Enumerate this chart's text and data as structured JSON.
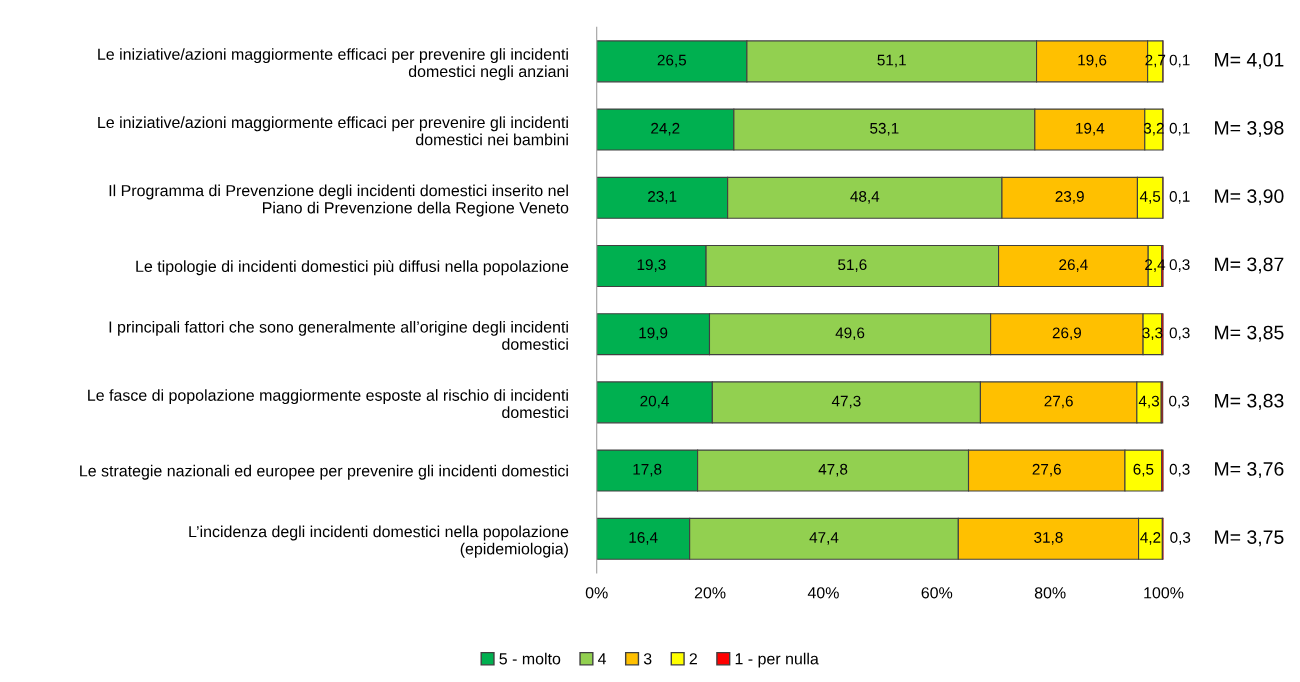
{
  "chart_data": {
    "type": "bar",
    "orientation": "horizontal",
    "stacked": true,
    "grid": false,
    "legend": "bottom",
    "categories": [
      "Le iniziative/azioni maggiormente efficaci per prevenire gli incidenti\ndomestici negli anziani",
      "Le iniziative/azioni maggiormente efficaci per prevenire gli incidenti\ndomestici nei bambini",
      "Il Programma di Prevenzione degli incidenti domestici inserito nel\nPiano di Prevenzione della Regione Veneto",
      "Le tipologie di incidenti domestici più diffusi nella popolazione",
      "I principali fattori che sono generalmente all’origine degli incidenti\ndomestici",
      "Le fasce di popolazione maggiormente esposte al rischio di incidenti\ndomestici",
      "Le strategie nazionali ed europee per prevenire gli incidenti domestici",
      "L’incidenza degli incidenti domestici nella popolazione\n(epidemiologia)"
    ],
    "series": [
      {
        "name": "5 - molto",
        "color": "#00b050",
        "values": [
          26.5,
          24.2,
          23.1,
          19.3,
          19.9,
          20.4,
          17.8,
          16.4
        ],
        "value_labels": [
          "26,5",
          "24,2",
          "23,1",
          "19,3",
          "19,9",
          "20,4",
          "17,8",
          "16,4"
        ]
      },
      {
        "name": "4",
        "color": "#92d050",
        "values": [
          51.1,
          53.1,
          48.4,
          51.6,
          49.6,
          47.3,
          47.8,
          47.4
        ],
        "value_labels": [
          "51,1",
          "53,1",
          "48,4",
          "51,6",
          "49,6",
          "47,3",
          "47,8",
          "47,4"
        ]
      },
      {
        "name": "3",
        "color": "#ffc000",
        "values": [
          19.6,
          19.4,
          23.9,
          26.4,
          26.9,
          27.6,
          27.6,
          31.8
        ],
        "value_labels": [
          "19,6",
          "19,4",
          "23,9",
          "26,4",
          "26,9",
          "27,6",
          "27,6",
          "31,8"
        ]
      },
      {
        "name": "2",
        "color": "#ffff00",
        "values": [
          2.7,
          3.2,
          4.5,
          2.4,
          3.3,
          4.3,
          6.5,
          4.2
        ],
        "value_labels": [
          "2,7",
          "3,2",
          "4,5",
          "2,4",
          "3,3",
          "4,3",
          "6,5",
          "4,2"
        ]
      },
      {
        "name": "1 - per nulla",
        "color": "#ff0000",
        "values": [
          0.1,
          0.1,
          0.1,
          0.3,
          0.3,
          0.3,
          0.3,
          0.3
        ],
        "value_labels": [
          "0,1",
          "0,1",
          "0,1",
          "0,3",
          "0,3",
          "0,3",
          "0,3",
          "0,3"
        ]
      }
    ],
    "xlim": [
      0,
      100
    ],
    "xticks": [
      {
        "value": 0,
        "label": "0%"
      },
      {
        "value": 20,
        "label": "20%"
      },
      {
        "value": 40,
        "label": "40%"
      },
      {
        "value": 60,
        "label": "60%"
      },
      {
        "value": 80,
        "label": "80%"
      },
      {
        "value": 100,
        "label": "100%"
      }
    ],
    "annotations": [
      "M= 4,01",
      "M= 3,98",
      "M= 3,90",
      "M= 3,87",
      "M= 3,85",
      "M= 3,83",
      "M= 3,76",
      "M= 3,75"
    ]
  }
}
